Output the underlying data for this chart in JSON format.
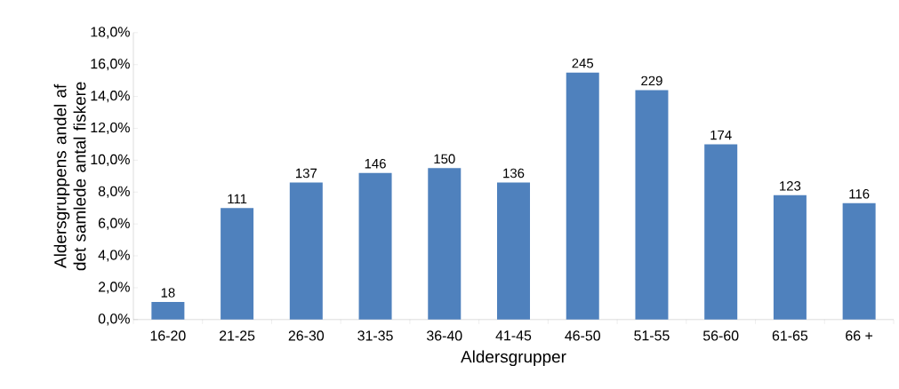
{
  "chart_data": {
    "type": "bar",
    "xlabel": "Aldersgrupper",
    "ylabel": "Aldersgruppens andel af det samlede antal fiskere",
    "categories": [
      "16-20",
      "21-25",
      "26-30",
      "31-35",
      "36-40",
      "41-45",
      "46-50",
      "51-55",
      "56-60",
      "61-65",
      "66 +"
    ],
    "values": [
      1.1,
      7.0,
      8.6,
      9.2,
      9.5,
      8.6,
      15.5,
      14.4,
      11.0,
      7.8,
      7.3
    ],
    "annotations": [
      {
        "text": "18",
        "x": "16-20",
        "y": 1.1
      },
      {
        "text": "111",
        "x": "21-25",
        "y": 7.0
      },
      {
        "text": "137",
        "x": "26-30",
        "y": 8.6
      },
      {
        "text": "146",
        "x": "31-35",
        "y": 9.2
      },
      {
        "text": "150",
        "x": "36-40",
        "y": 9.5
      },
      {
        "text": "136",
        "x": "41-45",
        "y": 8.6
      },
      {
        "text": "245",
        "x": "46-50",
        "y": 15.5
      },
      {
        "text": "229",
        "x": "51-55",
        "y": 14.4
      },
      {
        "text": "174",
        "x": "56-60",
        "y": 11.0
      },
      {
        "text": "123",
        "x": "61-65",
        "y": 7.8
      },
      {
        "text": "116",
        "x": "66 +",
        "y": 7.3
      }
    ],
    "color": "#4f81bd",
    "ylim": [
      0,
      18
    ],
    "yticks": [
      {
        "value": 0,
        "label": "0,0%"
      },
      {
        "value": 2,
        "label": "2,0%"
      },
      {
        "value": 4,
        "label": "4,0%"
      },
      {
        "value": 6,
        "label": "6,0%"
      },
      {
        "value": 8,
        "label": "8,0%"
      },
      {
        "value": 10,
        "label": "10,0%"
      },
      {
        "value": 12,
        "label": "12,0%"
      },
      {
        "value": 14,
        "label": "14,0%"
      },
      {
        "value": 16,
        "label": "16,0%"
      },
      {
        "value": 18,
        "label": "18,0%"
      }
    ]
  }
}
